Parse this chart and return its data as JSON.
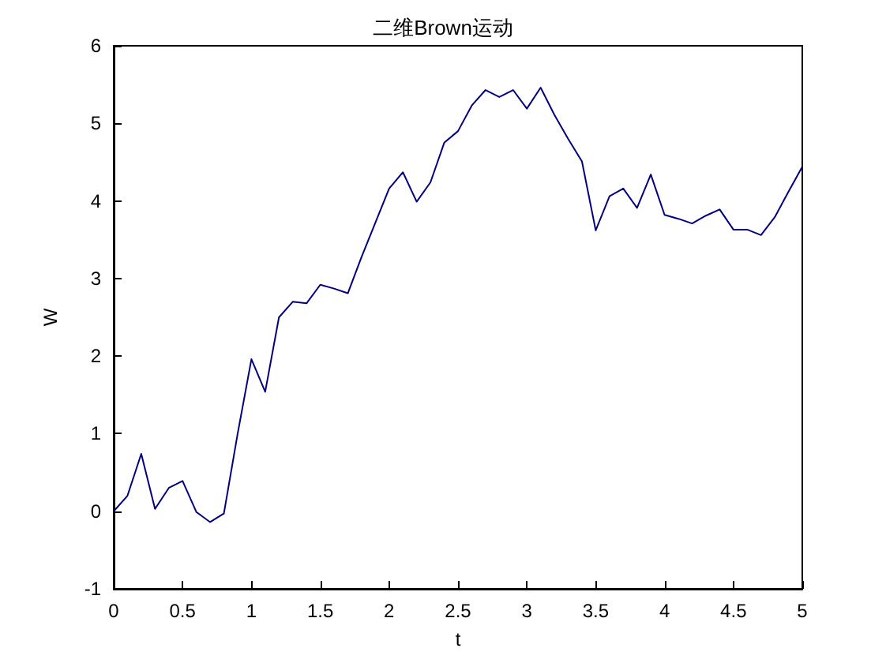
{
  "chart_data": {
    "type": "line",
    "title": "二维Brown运动",
    "xlabel": "t",
    "ylabel": "W",
    "x": [
      0,
      0.1,
      0.2,
      0.3,
      0.4,
      0.5,
      0.6,
      0.7,
      0.8,
      0.9,
      1,
      1.1,
      1.2,
      1.3,
      1.4,
      1.5,
      1.6,
      1.7,
      1.8,
      1.9,
      2,
      2.1,
      2.2,
      2.3,
      2.4,
      2.5,
      2.6,
      2.7,
      2.8,
      2.9,
      3,
      3.1,
      3.2,
      3.3,
      3.4,
      3.5,
      3.6,
      3.7,
      3.8,
      3.9,
      4,
      4.1,
      4.2,
      4.3,
      4.4,
      4.5,
      4.6,
      4.7,
      4.8,
      4.9,
      5
    ],
    "series": [
      {
        "color": "#00007f",
        "values": [
          0,
          0.2,
          0.74,
          0.03,
          0.3,
          0.39,
          -0.01,
          -0.14,
          -0.03,
          1.0,
          1.96,
          1.54,
          2.5,
          2.7,
          2.68,
          2.92,
          2.87,
          2.81,
          3.28,
          3.72,
          4.16,
          4.37,
          3.99,
          4.24,
          4.75,
          4.9,
          5.23,
          5.43,
          5.34,
          5.43,
          5.19,
          5.46,
          5.11,
          4.8,
          4.51,
          3.62,
          4.06,
          4.16,
          3.91,
          4.34,
          3.82,
          3.77,
          3.71,
          3.81,
          3.89,
          3.63,
          3.63,
          3.56,
          3.79,
          4.12,
          4.44
        ]
      }
    ],
    "xlim": [
      0,
      5
    ],
    "xticks": [
      0,
      0.5,
      1,
      1.5,
      2,
      2.5,
      3,
      3.5,
      4,
      4.5,
      5
    ],
    "ylim": [
      -1,
      6
    ],
    "yticks": [
      -1,
      0,
      1,
      2,
      3,
      4,
      5,
      6
    ],
    "marker": "none",
    "line_style": "solid"
  }
}
